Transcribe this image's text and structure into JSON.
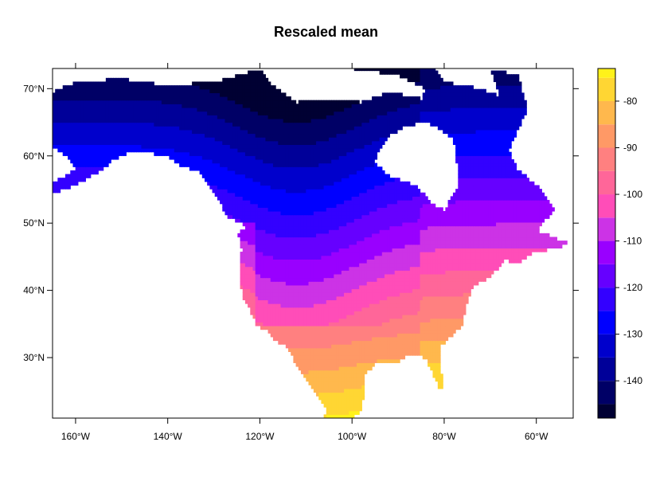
{
  "title": "Rescaled mean",
  "chart_data": {
    "type": "heatmap",
    "title": "Rescaled mean",
    "xlim": [
      -165,
      -52
    ],
    "ylim": [
      21,
      73
    ],
    "x_ticks": [
      {
        "value": -160,
        "label": "160°W"
      },
      {
        "value": -140,
        "label": "140°W"
      },
      {
        "value": -120,
        "label": "120°W"
      },
      {
        "value": -100,
        "label": "100°W"
      },
      {
        "value": -80,
        "label": "80°W"
      },
      {
        "value": -60,
        "label": "60°W"
      }
    ],
    "y_ticks": [
      {
        "value": 30,
        "label": "30°N"
      },
      {
        "value": 40,
        "label": "40°N"
      },
      {
        "value": 50,
        "label": "50°N"
      },
      {
        "value": 60,
        "label": "60°N"
      },
      {
        "value": 70,
        "label": "70°N"
      }
    ],
    "colorbar": {
      "min": -148,
      "max": -73,
      "breaks": [
        -148,
        -145,
        -140,
        -135,
        -130,
        -125,
        -120,
        -115,
        -110,
        -105,
        -100,
        -95,
        -90,
        -85,
        -80,
        -75,
        -73
      ],
      "colors": [
        "#000033",
        "#000066",
        "#000099",
        "#0000CC",
        "#0000FF",
        "#3300FF",
        "#6600FF",
        "#9900FF",
        "#CC33E6",
        "#FF4DB8",
        "#FF6699",
        "#FF8080",
        "#FF9966",
        "#FFB84D",
        "#FFD633",
        "#FFF21A",
        "#FFFF66"
      ],
      "ticks": [
        {
          "value": -140,
          "label": "-140"
        },
        {
          "value": -130,
          "label": "-130"
        },
        {
          "value": -120,
          "label": "-120"
        },
        {
          "value": -110,
          "label": "-110"
        },
        {
          "value": -100,
          "label": "-100"
        },
        {
          "value": -90,
          "label": "-90"
        },
        {
          "value": -80,
          "label": "-80"
        }
      ]
    }
  }
}
